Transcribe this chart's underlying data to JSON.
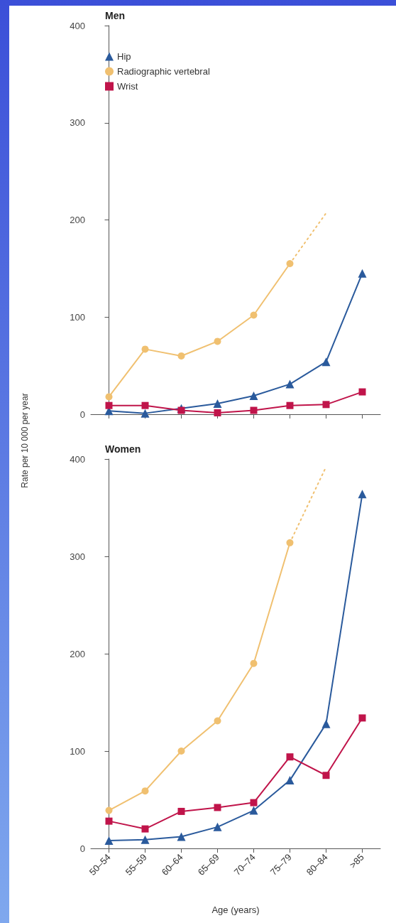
{
  "chart_data": [
    {
      "type": "line",
      "title": "Men",
      "ylabel": "Rate per 10 000 per year",
      "categories": [
        null,
        null,
        null,
        null,
        null,
        null,
        null,
        null
      ],
      "series": [
        {
          "name": "Hip",
          "color": "#2a5a9c",
          "marker": "triangle",
          "values": [
            3.5,
            1,
            6,
            11,
            19,
            31,
            54,
            145
          ]
        },
        {
          "name": "Radiographic vertebral",
          "color": "#f0c070",
          "marker": "circle",
          "values": [
            18,
            67,
            60,
            75,
            102,
            155,
            null,
            null
          ]
        },
        {
          "name": "Wrist",
          "color": "#c0144a",
          "marker": "square",
          "values": [
            9,
            9,
            4,
            1.5,
            4,
            9,
            10,
            23
          ]
        },
        {
          "color": "#f0c070",
          "marker": "none",
          "line_style": "dotted",
          "values": [
            null,
            null,
            null,
            null,
            null,
            155,
            207,
            null
          ]
        }
      ],
      "ylim": [
        0,
        400
      ],
      "yticks": [
        0,
        100,
        200,
        300,
        400
      ],
      "grid": false,
      "legend": "top left",
      "tick_labels": "y"
    },
    {
      "type": "line",
      "title": "Women",
      "xlabel": "Age (years)",
      "categories": [
        "50–54",
        "55–59",
        "60–64",
        "65–69",
        "70–74",
        "75–79",
        "80–84",
        ">85"
      ],
      "series": [
        {
          "color": "#2a5a9c",
          "marker": "triangle",
          "values": [
            8,
            9,
            12,
            22,
            39,
            70,
            128,
            364
          ]
        },
        {
          "color": "#f0c070",
          "marker": "circle",
          "values": [
            39,
            59,
            100,
            131,
            190,
            314,
            null,
            null
          ]
        },
        {
          "color": "#c0144a",
          "marker": "square",
          "values": [
            28,
            20,
            38,
            42,
            47,
            94,
            75,
            134
          ]
        },
        {
          "color": "#f0c070",
          "marker": "none",
          "line_style": "dotted",
          "values": [
            null,
            null,
            null,
            null,
            null,
            314,
            392,
            null
          ]
        }
      ],
      "ylim": [
        0,
        400
      ],
      "yticks": [
        0,
        100,
        200,
        300,
        400
      ],
      "grid": false,
      "legend": false
    }
  ]
}
